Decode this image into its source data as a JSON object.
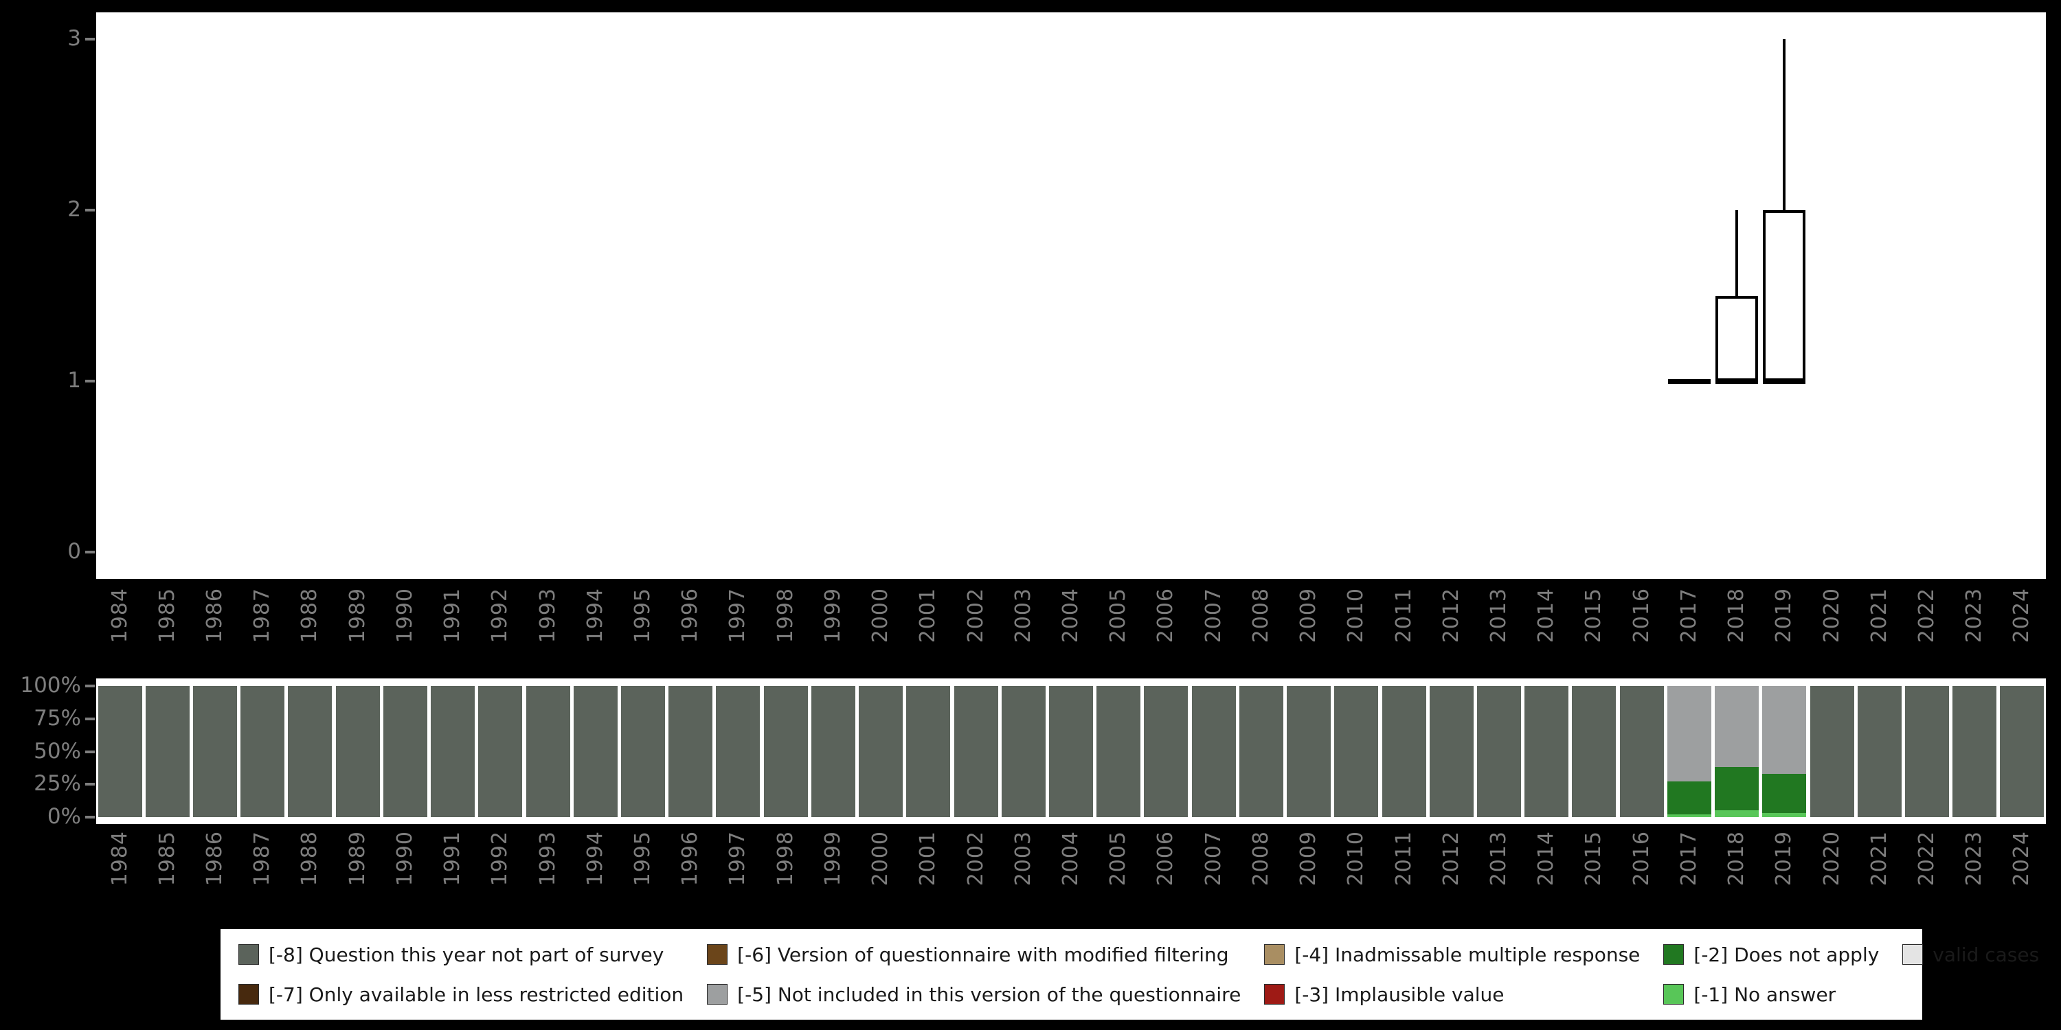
{
  "page": {
    "background": "#000000",
    "panel_background": "#ffffff",
    "axis_text_color": "#7e7e7e"
  },
  "years": [
    "1984",
    "1985",
    "1986",
    "1987",
    "1988",
    "1989",
    "1990",
    "1991",
    "1992",
    "1993",
    "1994",
    "1995",
    "1996",
    "1997",
    "1998",
    "1999",
    "2000",
    "2001",
    "2002",
    "2003",
    "2004",
    "2005",
    "2006",
    "2007",
    "2008",
    "2009",
    "2010",
    "2011",
    "2012",
    "2013",
    "2014",
    "2015",
    "2016",
    "2017",
    "2018",
    "2019",
    "2020",
    "2021",
    "2022",
    "2023",
    "2024"
  ],
  "chart_data": [
    {
      "type": "boxplot",
      "panel": "top",
      "title": "",
      "xlabel": "",
      "ylabel": "",
      "ylim": [
        0,
        3
      ],
      "yticks": [
        0,
        1,
        2,
        3
      ],
      "grid": false,
      "boxes": [
        {
          "year": "2017",
          "min": 1,
          "q1": 1,
          "median": 1,
          "q3": 1,
          "max": 1
        },
        {
          "year": "2018",
          "min": 1,
          "q1": 1,
          "median": 1,
          "q3": 1.5,
          "max": 2
        },
        {
          "year": "2019",
          "min": 1,
          "q1": 1,
          "median": 1,
          "q3": 2,
          "max": 3
        }
      ]
    },
    {
      "type": "stacked_bar_percent",
      "panel": "bottom",
      "title": "",
      "yticks": [
        "0%",
        "25%",
        "50%",
        "75%",
        "100%"
      ],
      "ylim_percent": [
        0,
        100
      ],
      "stack_order_bottom_to_top": [
        "-1",
        "-2",
        "-3",
        "-4",
        "-5",
        "-6",
        "-7",
        "-8",
        "valid"
      ],
      "bars": [
        {
          "year": "1984",
          "segments": {
            "-8": 100
          }
        },
        {
          "year": "1985",
          "segments": {
            "-8": 100
          }
        },
        {
          "year": "1986",
          "segments": {
            "-8": 100
          }
        },
        {
          "year": "1987",
          "segments": {
            "-8": 100
          }
        },
        {
          "year": "1988",
          "segments": {
            "-8": 100
          }
        },
        {
          "year": "1989",
          "segments": {
            "-8": 100
          }
        },
        {
          "year": "1990",
          "segments": {
            "-8": 100
          }
        },
        {
          "year": "1991",
          "segments": {
            "-8": 100
          }
        },
        {
          "year": "1992",
          "segments": {
            "-8": 100
          }
        },
        {
          "year": "1993",
          "segments": {
            "-8": 100
          }
        },
        {
          "year": "1994",
          "segments": {
            "-8": 100
          }
        },
        {
          "year": "1995",
          "segments": {
            "-8": 100
          }
        },
        {
          "year": "1996",
          "segments": {
            "-8": 100
          }
        },
        {
          "year": "1997",
          "segments": {
            "-8": 100
          }
        },
        {
          "year": "1998",
          "segments": {
            "-8": 100
          }
        },
        {
          "year": "1999",
          "segments": {
            "-8": 100
          }
        },
        {
          "year": "2000",
          "segments": {
            "-8": 100
          }
        },
        {
          "year": "2001",
          "segments": {
            "-8": 100
          }
        },
        {
          "year": "2002",
          "segments": {
            "-8": 100
          }
        },
        {
          "year": "2003",
          "segments": {
            "-8": 100
          }
        },
        {
          "year": "2004",
          "segments": {
            "-8": 100
          }
        },
        {
          "year": "2005",
          "segments": {
            "-8": 100
          }
        },
        {
          "year": "2006",
          "segments": {
            "-8": 100
          }
        },
        {
          "year": "2007",
          "segments": {
            "-8": 100
          }
        },
        {
          "year": "2008",
          "segments": {
            "-8": 100
          }
        },
        {
          "year": "2009",
          "segments": {
            "-8": 100
          }
        },
        {
          "year": "2010",
          "segments": {
            "-8": 100
          }
        },
        {
          "year": "2011",
          "segments": {
            "-8": 100
          }
        },
        {
          "year": "2012",
          "segments": {
            "-8": 100
          }
        },
        {
          "year": "2013",
          "segments": {
            "-8": 100
          }
        },
        {
          "year": "2014",
          "segments": {
            "-8": 100
          }
        },
        {
          "year": "2015",
          "segments": {
            "-8": 100
          }
        },
        {
          "year": "2016",
          "segments": {
            "-8": 100
          }
        },
        {
          "year": "2017",
          "segments": {
            "-1": 2,
            "-2": 25,
            "-5": 73
          }
        },
        {
          "year": "2018",
          "segments": {
            "-1": 5,
            "-2": 33,
            "-5": 62
          }
        },
        {
          "year": "2019",
          "segments": {
            "-1": 3,
            "-2": 30,
            "-5": 67
          }
        },
        {
          "year": "2020",
          "segments": {
            "-8": 100
          }
        },
        {
          "year": "2021",
          "segments": {
            "-8": 100
          }
        },
        {
          "year": "2022",
          "segments": {
            "-8": 100
          }
        },
        {
          "year": "2023",
          "segments": {
            "-8": 100
          }
        },
        {
          "year": "2024",
          "segments": {
            "-8": 100
          }
        }
      ]
    }
  ],
  "legend": {
    "items": [
      {
        "key": "-8",
        "label": "[-8] Question this year not part of survey",
        "color": "#5b635b"
      },
      {
        "key": "-7",
        "label": "[-7] Only available in less restricted edition",
        "color": "#47290e"
      },
      {
        "key": "-6",
        "label": "[-6] Version of questionnaire with modified filtering",
        "color": "#6b451a"
      },
      {
        "key": "-5",
        "label": "[-5] Not included in this version of the questionnaire",
        "color": "#9d9fa0"
      },
      {
        "key": "-4",
        "label": "[-4] Inadmissable multiple response",
        "color": "#a98e62"
      },
      {
        "key": "-3",
        "label": "[-3] Implausible value",
        "color": "#9e1a15"
      },
      {
        "key": "-2",
        "label": "[-2] Does not apply",
        "color": "#217821"
      },
      {
        "key": "-1",
        "label": "[-1] No answer",
        "color": "#58c658"
      },
      {
        "key": "valid",
        "label": "valid cases",
        "color": "#e4e4e4"
      }
    ]
  }
}
